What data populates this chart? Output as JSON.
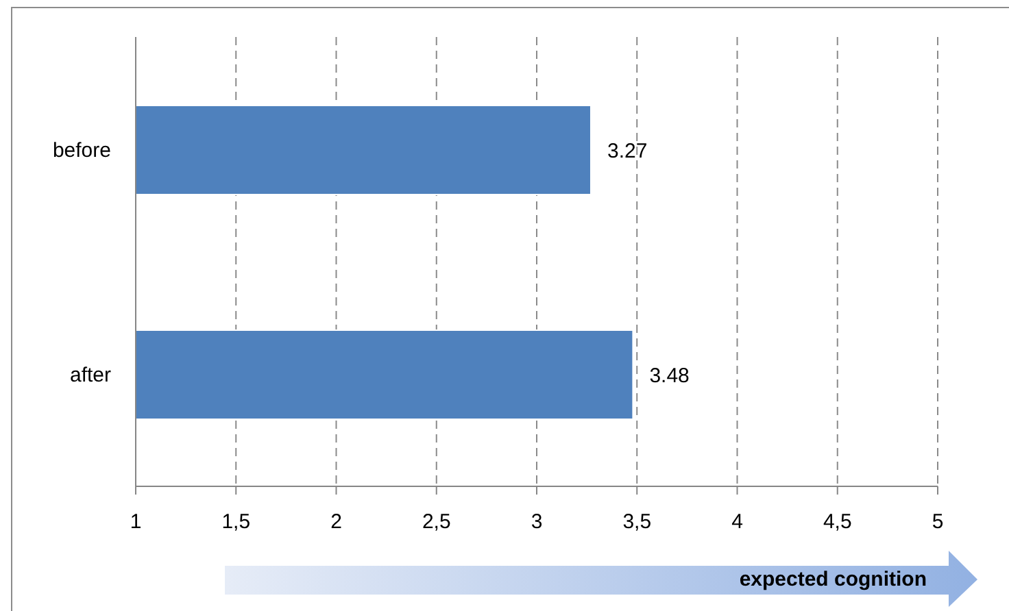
{
  "chart_data": {
    "type": "bar",
    "orientation": "horizontal",
    "categories": [
      "before",
      "after"
    ],
    "values": [
      3.27,
      3.48
    ],
    "color": "#4f81bd",
    "xlim": [
      1,
      5
    ],
    "xticks": [
      1,
      {
        "value": 1.5,
        "label": "1,5"
      },
      2,
      {
        "value": 2.5,
        "label": "2,5"
      },
      3,
      {
        "value": 3.5,
        "label": "3,5"
      },
      4,
      {
        "value": 4.5,
        "label": "4,5"
      },
      5
    ],
    "xlabel": "expected cognition",
    "grid": "x",
    "data_labels": true
  }
}
